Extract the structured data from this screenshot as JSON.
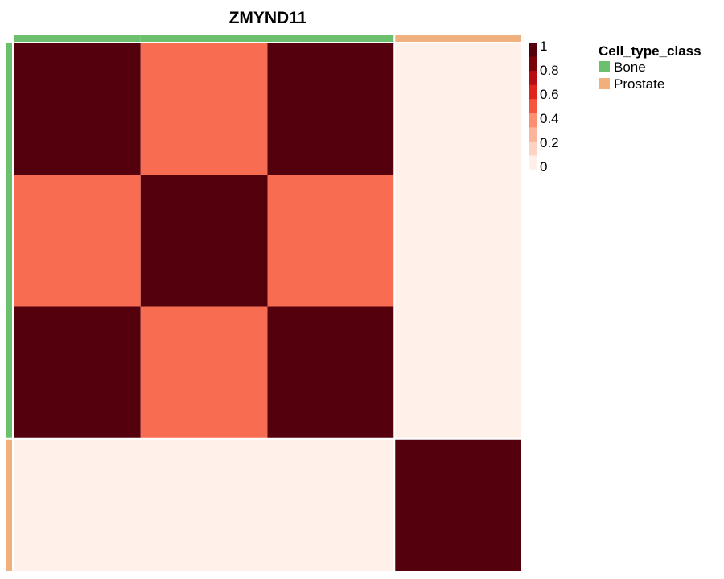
{
  "chart_data": {
    "type": "heatmap",
    "title": "ZMYND11",
    "rows": 4,
    "cols": 4,
    "matrix": [
      [
        1,
        0.45,
        1,
        0
      ],
      [
        0.45,
        1,
        0.45,
        0
      ],
      [
        1,
        0.45,
        1,
        0
      ],
      [
        0,
        0,
        0,
        1
      ]
    ],
    "column_annotation": [
      "Bone",
      "Bone",
      "Bone",
      "Prostate"
    ],
    "row_annotation": [
      "Bone",
      "Bone",
      "Bone",
      "Prostate"
    ],
    "color_scale": {
      "min": 0,
      "max": 1,
      "ticks": [
        "1",
        "0.8",
        "0.6",
        "0.4",
        "0.2",
        "0"
      ],
      "colors": [
        "#fff0ea",
        "#fdd4c4",
        "#fcb59c",
        "#fb8f6f",
        "#f6553d",
        "#e0251f",
        "#b70d13",
        "#7a0309",
        "#54000d"
      ]
    },
    "legend": {
      "title": "Cell_type_class",
      "placement": "top-right",
      "entries": [
        {
          "label": "Bone",
          "color": "#6cbf6d"
        },
        {
          "label": "Prostate",
          "color": "#efb07e"
        }
      ]
    },
    "xlabel": "",
    "ylabel": "",
    "grid": false
  }
}
